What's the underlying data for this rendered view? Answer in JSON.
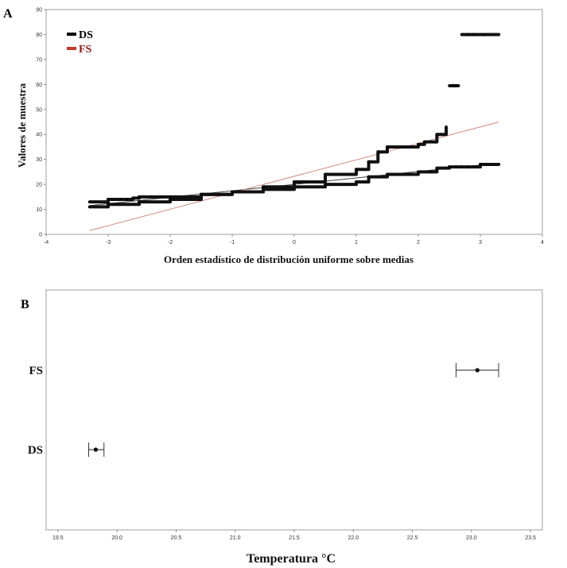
{
  "chart_data": [
    {
      "panel": "A",
      "type": "scatter",
      "xlabel": "Orden estadístico de distribución uniforme sobre medias",
      "ylabel": "Valores de muestra",
      "xlim": [
        -4,
        4
      ],
      "ylim": [
        0,
        90
      ],
      "xticks": [
        "-4",
        "-3",
        "-2",
        "-1",
        "0",
        "1",
        "2",
        "3",
        "4"
      ],
      "yticks": [
        "0",
        "10",
        "20",
        "30",
        "40",
        "50",
        "60",
        "70",
        "80",
        "90"
      ],
      "legend": [
        {
          "name": "DS",
          "color": "#000000"
        },
        {
          "name": "FS",
          "color": "#c0392b"
        }
      ],
      "series": [
        {
          "name": "DS",
          "color": "#000000",
          "points": [
            [
              -3.3,
              11
            ],
            [
              -3.0,
              12
            ],
            [
              -2.5,
              13
            ],
            [
              -2.0,
              14
            ],
            [
              -1.5,
              16
            ],
            [
              -1.0,
              17
            ],
            [
              -0.5,
              18
            ],
            [
              0.0,
              19
            ],
            [
              0.5,
              20
            ],
            [
              1.0,
              21
            ],
            [
              1.2,
              23
            ],
            [
              1.5,
              24
            ],
            [
              2.0,
              25
            ],
            [
              2.2,
              25
            ],
            [
              2.3,
              26.5
            ],
            [
              2.5,
              27
            ],
            [
              2.6,
              27
            ],
            [
              2.7,
              27
            ],
            [
              2.8,
              27
            ],
            [
              2.9,
              27
            ],
            [
              3.0,
              28
            ],
            [
              3.3,
              28
            ]
          ],
          "fit_line": [
            [
              -3.3,
              11.5
            ],
            [
              3.3,
              28.5
            ]
          ]
        },
        {
          "name": "FS",
          "color": "#c0392b",
          "points": [
            [
              -3.3,
              13
            ],
            [
              -3.0,
              14
            ],
            [
              -2.8,
              14
            ],
            [
              -2.7,
              14
            ],
            [
              -2.6,
              14.5
            ],
            [
              -2.5,
              15
            ],
            [
              -2.0,
              15
            ],
            [
              -1.5,
              16
            ],
            [
              -1.0,
              17
            ],
            [
              -0.5,
              19
            ],
            [
              0.0,
              21
            ],
            [
              0.5,
              24
            ],
            [
              1.0,
              26
            ],
            [
              1.2,
              29
            ],
            [
              1.35,
              33
            ],
            [
              1.5,
              35
            ],
            [
              2.0,
              36
            ],
            [
              2.1,
              37
            ],
            [
              2.3,
              40
            ],
            [
              2.45,
              43
            ],
            [
              2.5,
              59.5
            ],
            [
              2.55,
              59.5
            ],
            [
              2.6,
              59.5
            ],
            [
              2.65,
              59.5
            ],
            [
              2.7,
              80
            ],
            [
              2.8,
              80
            ],
            [
              2.9,
              80
            ],
            [
              3.05,
              80
            ],
            [
              3.3,
              80
            ]
          ],
          "fit_line": [
            [
              -3.3,
              1.5
            ],
            [
              3.3,
              45
            ]
          ]
        }
      ]
    },
    {
      "panel": "B",
      "type": "scatter",
      "xlabel": "Temperatura °C",
      "xlim": [
        19.4,
        23.6
      ],
      "xticks": [
        "19.5",
        "20.0",
        "20.5",
        "21.0",
        "21.5",
        "22.0",
        "22.5",
        "23.0",
        "23.5"
      ],
      "categories": [
        "FS",
        "DS"
      ],
      "series": [
        {
          "name": "FS",
          "mean": 23.05,
          "ci_low": 22.87,
          "ci_high": 23.23
        },
        {
          "name": "DS",
          "mean": 19.82,
          "ci_low": 19.76,
          "ci_high": 19.89
        }
      ]
    }
  ],
  "labels": {
    "panel_a": "A",
    "panel_b": "B"
  }
}
